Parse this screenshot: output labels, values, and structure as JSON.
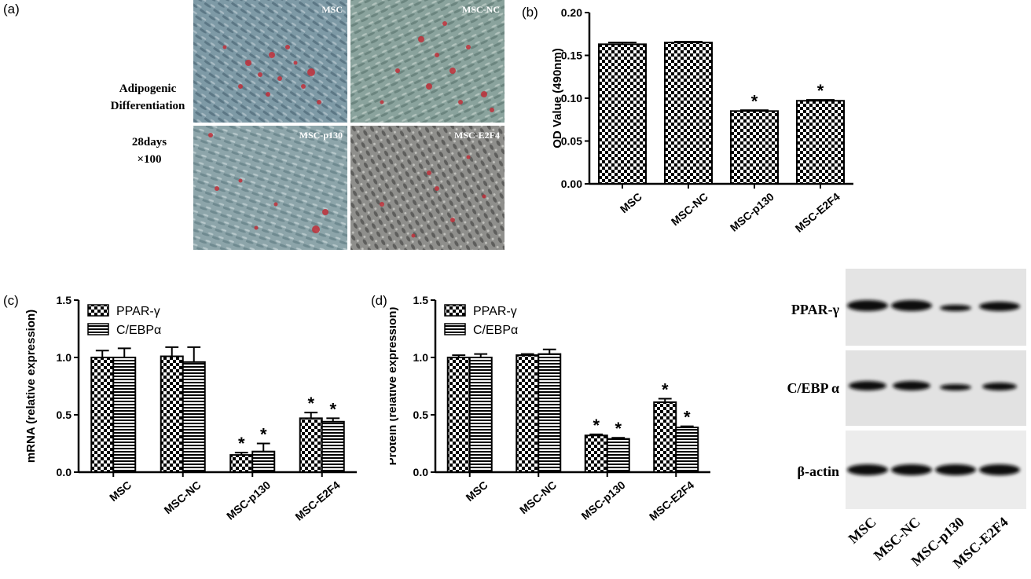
{
  "panels": {
    "a": "(a)",
    "b": "(b)",
    "c": "(c)",
    "d": "(d)"
  },
  "micro": {
    "side_label_1": "Adipogenic",
    "side_label_2": "Differentiation",
    "side_label_3": "28days",
    "side_label_4": "×100",
    "tiles": [
      "MSC",
      "MSC-NC",
      "MSC-p130",
      "MSC-E2F4"
    ]
  },
  "blot": {
    "bands": [
      "PPAR-γ",
      "C/EBP α",
      "β-actin"
    ],
    "lanes": [
      "MSC",
      "MSC-NC",
      "MSC-p130",
      "MSC-E2F4"
    ]
  },
  "colors": {
    "bar_fill": "#000000",
    "background": "#ffffff"
  },
  "chart_data": [
    {
      "id": "b",
      "type": "bar",
      "categories": [
        "MSC",
        "MSC-NC",
        "MSC-p130",
        "MSC-E2F4"
      ],
      "series": [
        {
          "values": [
            0.163,
            0.165,
            0.085,
            0.097
          ],
          "errors": [
            0.002,
            0.001,
            0.001,
            0.001
          ],
          "pattern": "checker"
        }
      ],
      "significance": [
        "",
        "",
        "*",
        "*"
      ],
      "ylabel": "OD Value (490nm)",
      "ylim": [
        0,
        0.2
      ],
      "yticks": [
        "0.00",
        "0.05",
        "0.10",
        "0.15",
        "0.20"
      ],
      "grid": false
    },
    {
      "id": "c",
      "type": "bar",
      "categories": [
        "MSC",
        "MSC-NC",
        "MSC-p130",
        "MSC-E2F4"
      ],
      "series": [
        {
          "name": "PPAR-γ",
          "values": [
            1.0,
            1.01,
            0.15,
            0.47
          ],
          "errors": [
            0.06,
            0.08,
            0.02,
            0.05
          ],
          "pattern": "checker",
          "significance": [
            "",
            "",
            "*",
            "*"
          ]
        },
        {
          "name": "C/EBPα",
          "values": [
            1.0,
            0.96,
            0.18,
            0.44
          ],
          "errors": [
            0.08,
            0.13,
            0.07,
            0.03
          ],
          "pattern": "hstripe",
          "significance": [
            "",
            "",
            "*",
            "*"
          ]
        }
      ],
      "ylabel": "mRNA (relative expression)",
      "ylim": [
        0,
        1.5
      ],
      "yticks": [
        "0.0",
        "0.5",
        "1.0",
        "1.5"
      ],
      "legend": "top-left",
      "grid": false
    },
    {
      "id": "d",
      "type": "bar",
      "categories": [
        "MSC",
        "MSC-NC",
        "MSC-p130",
        "MSC-E2F4"
      ],
      "series": [
        {
          "name": "PPAR-γ",
          "values": [
            1.0,
            1.02,
            0.32,
            0.61
          ],
          "errors": [
            0.02,
            0.01,
            0.01,
            0.03
          ],
          "pattern": "checker",
          "significance": [
            "",
            "",
            "*",
            "*"
          ]
        },
        {
          "name": "C/EBPα",
          "values": [
            1.0,
            1.03,
            0.29,
            0.39
          ],
          "errors": [
            0.03,
            0.04,
            0.01,
            0.01
          ],
          "pattern": "hstripe",
          "significance": [
            "",
            "",
            "*",
            "*"
          ]
        }
      ],
      "ylabel": "Protein (relative expression)",
      "ylim": [
        0,
        1.5
      ],
      "yticks": [
        "0.0",
        "0.5",
        "1.0",
        "1.5"
      ],
      "legend": "top-left",
      "grid": false
    }
  ]
}
